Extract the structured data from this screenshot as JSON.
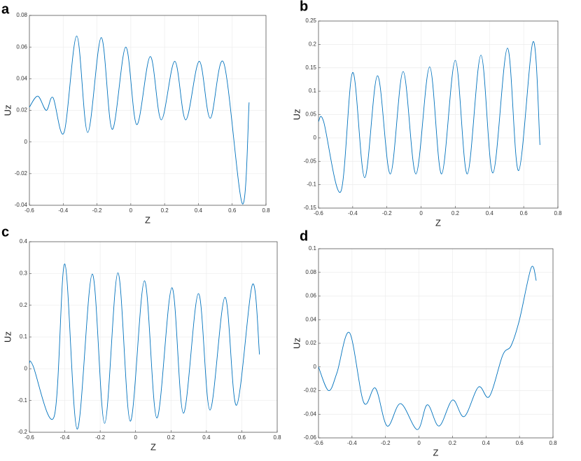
{
  "chart_data": [
    {
      "type": "line",
      "panel": "a",
      "xlabel": "Z",
      "ylabel": "Uz",
      "color": "#0072bd",
      "grid": true,
      "xlim": [
        -0.6,
        0.8
      ],
      "xticks": [
        -0.6,
        -0.4,
        -0.2,
        0,
        0.2,
        0.4,
        0.6,
        0.8
      ],
      "ylim": [
        -0.04,
        0.08
      ],
      "yticks": [
        -0.04,
        -0.02,
        0,
        0.02,
        0.04,
        0.06,
        0.08
      ],
      "x": [
        -0.6,
        -0.55,
        -0.5,
        -0.46,
        -0.395,
        -0.32,
        -0.255,
        -0.175,
        -0.11,
        -0.03,
        0.035,
        0.115,
        0.18,
        0.26,
        0.325,
        0.405,
        0.47,
        0.55,
        0.66,
        0.7
      ],
      "values": [
        0.022,
        0.029,
        0.02,
        0.028,
        0.006,
        0.067,
        0.006,
        0.066,
        0.008,
        0.06,
        0.011,
        0.054,
        0.014,
        0.051,
        0.014,
        0.051,
        0.015,
        0.05,
        -0.039,
        0.025
      ]
    },
    {
      "type": "line",
      "panel": "b",
      "xlabel": "Z",
      "ylabel": "Uz",
      "color": "#0072bd",
      "grid": true,
      "xlim": [
        -0.6,
        0.8
      ],
      "xticks": [
        -0.6,
        -0.4,
        -0.2,
        0,
        0.2,
        0.4,
        0.6,
        0.8
      ],
      "ylim": [
        -0.15,
        0.25
      ],
      "yticks": [
        -0.15,
        -0.1,
        -0.05,
        0,
        0.05,
        0.1,
        0.15,
        0.2,
        0.25
      ],
      "x": [
        -0.6,
        -0.57,
        -0.47,
        -0.4,
        -0.33,
        -0.255,
        -0.18,
        -0.105,
        -0.03,
        0.05,
        0.12,
        0.2,
        0.27,
        0.35,
        0.42,
        0.505,
        0.57,
        0.655,
        0.695
      ],
      "values": [
        0.035,
        0.035,
        -0.115,
        0.14,
        -0.085,
        0.133,
        -0.077,
        0.142,
        -0.077,
        0.152,
        -0.077,
        0.166,
        -0.077,
        0.177,
        -0.075,
        0.192,
        -0.07,
        0.206,
        -0.015
      ]
    },
    {
      "type": "line",
      "panel": "c",
      "xlabel": "Z",
      "ylabel": "Uz",
      "color": "#0072bd",
      "grid": true,
      "xlim": [
        -0.6,
        0.8
      ],
      "xticks": [
        -0.6,
        -0.4,
        -0.2,
        0,
        0.2,
        0.4,
        0.6,
        0.8
      ],
      "ylim": [
        -0.2,
        0.4
      ],
      "yticks": [
        -0.2,
        -0.1,
        0,
        0.1,
        0.2,
        0.3,
        0.4
      ],
      "x": [
        -0.6,
        -0.58,
        -0.46,
        -0.4,
        -0.33,
        -0.245,
        -0.175,
        -0.1,
        -0.03,
        0.05,
        0.12,
        0.205,
        0.27,
        0.355,
        0.42,
        0.505,
        0.57,
        0.66,
        0.7
      ],
      "values": [
        0.018,
        0.01,
        -0.15,
        0.33,
        -0.19,
        0.298,
        -0.172,
        0.302,
        -0.165,
        0.277,
        -0.155,
        0.255,
        -0.14,
        0.237,
        -0.13,
        0.225,
        -0.115,
        0.265,
        0.045
      ]
    },
    {
      "type": "line",
      "panel": "d",
      "xlabel": "Z",
      "ylabel": "Uz",
      "color": "#0072bd",
      "grid": true,
      "xlim": [
        -0.6,
        0.8
      ],
      "xticks": [
        -0.6,
        -0.4,
        -0.2,
        0,
        0.2,
        0.4,
        0.6,
        0.8
      ],
      "ylim": [
        -0.06,
        0.1
      ],
      "yticks": [
        -0.06,
        -0.04,
        -0.02,
        0,
        0.02,
        0.04,
        0.06,
        0.08,
        0.1
      ],
      "x": [
        -0.6,
        -0.54,
        -0.49,
        -0.415,
        -0.33,
        -0.26,
        -0.19,
        -0.11,
        -0.01,
        0.05,
        0.12,
        0.2,
        0.27,
        0.355,
        0.42,
        0.5,
        0.55,
        0.6,
        0.67,
        0.7
      ],
      "values": [
        0.0,
        -0.02,
        -0.005,
        0.029,
        -0.03,
        -0.018,
        -0.05,
        -0.031,
        -0.053,
        -0.032,
        -0.05,
        -0.028,
        -0.042,
        -0.017,
        -0.025,
        0.01,
        0.018,
        0.04,
        0.084,
        0.073
      ]
    }
  ]
}
